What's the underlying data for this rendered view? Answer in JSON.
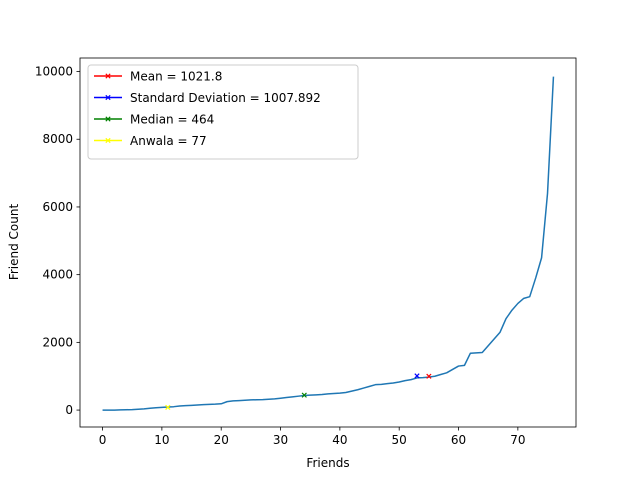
{
  "chart_data": {
    "type": "line",
    "xlabel": "Friends",
    "ylabel": "Friend Count",
    "xlim": [
      -3.8,
      79.8
    ],
    "ylim": [
      -500,
      10400
    ],
    "x_ticks": [
      0,
      10,
      20,
      30,
      40,
      50,
      60,
      70
    ],
    "y_ticks": [
      0,
      2000,
      4000,
      6000,
      8000,
      10000
    ],
    "grid": false,
    "legend_position": "upper-left",
    "line_color": "#1f77b4",
    "series": [
      {
        "x": [
          0,
          1,
          2,
          3,
          4,
          5,
          6,
          7,
          8,
          9,
          10,
          11,
          12,
          13,
          14,
          15,
          16,
          17,
          18,
          19,
          20,
          21,
          22,
          23,
          24,
          25,
          26,
          27,
          28,
          29,
          30,
          31,
          32,
          33,
          34,
          35,
          36,
          37,
          38,
          39,
          40,
          41,
          42,
          43,
          44,
          45,
          46,
          47,
          48,
          49,
          50,
          51,
          52,
          53,
          54,
          55,
          56,
          57,
          58,
          59,
          60,
          61,
          62,
          63,
          64,
          65,
          66,
          67,
          68,
          69,
          70,
          71,
          72,
          73,
          74,
          75,
          76
        ],
        "values": [
          0,
          0,
          0,
          5,
          10,
          15,
          25,
          35,
          55,
          70,
          80,
          90,
          100,
          120,
          130,
          140,
          150,
          160,
          170,
          175,
          185,
          250,
          270,
          280,
          290,
          300,
          305,
          310,
          320,
          330,
          350,
          370,
          390,
          410,
          430,
          440,
          450,
          460,
          480,
          490,
          500,
          520,
          560,
          600,
          650,
          700,
          750,
          760,
          780,
          800,
          830,
          870,
          900,
          950,
          960,
          975,
          1000,
          1050,
          1100,
          1200,
          1300,
          1320,
          1680,
          1690,
          1700,
          1900,
          2100,
          2300,
          2700,
          2950,
          3150,
          3300,
          3350,
          3900,
          4500,
          6400,
          9850
        ]
      }
    ],
    "markers": [
      {
        "label": "Mean = 1021.8",
        "color": "#ff0000",
        "x": 55,
        "y": 1000
      },
      {
        "label": "Standard Deviation = 1007.892",
        "color": "#0000ff",
        "x": 53,
        "y": 1010
      },
      {
        "label": "Median = 464",
        "color": "#008000",
        "x": 34,
        "y": 440
      },
      {
        "label": "Anwala = 77",
        "color": "#ffff00",
        "x": 11,
        "y": 80
      }
    ]
  }
}
